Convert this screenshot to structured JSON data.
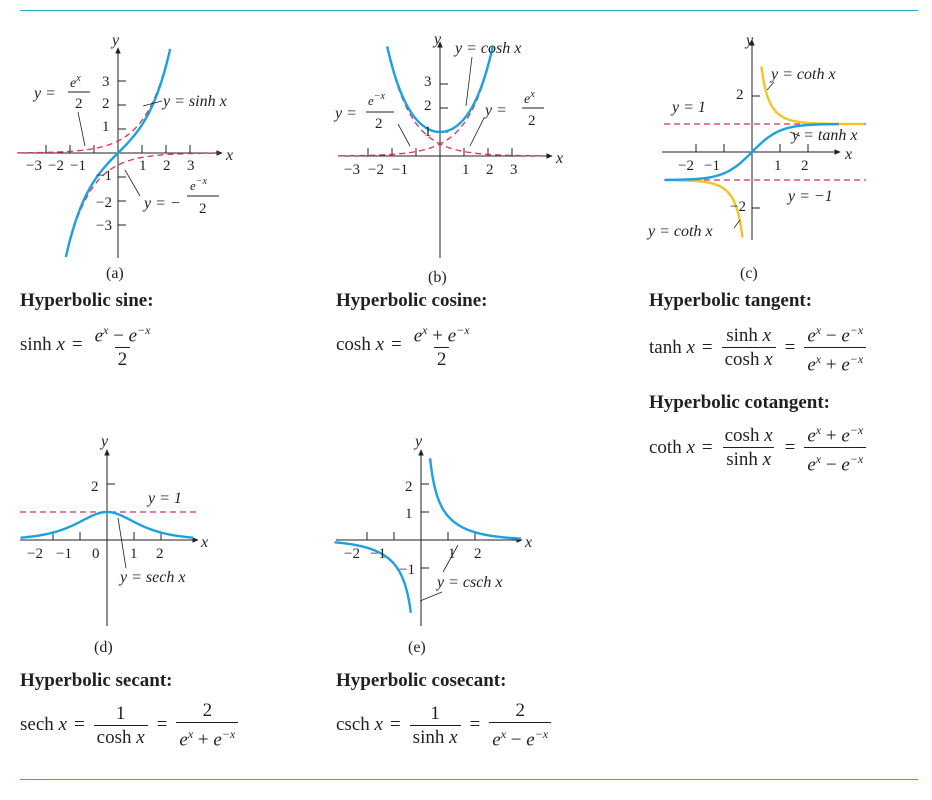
{
  "colors": {
    "rule": "#29a8d8",
    "curve_blue": "#1ba1e2",
    "curve_yellow": "#f6c325",
    "dashed_red": "#d8315b"
  },
  "panels": {
    "a": {
      "caption": "(a)",
      "y_axis": "y",
      "x_axis": "x",
      "x_ticks": [
        "−3",
        "−2",
        "−1",
        "1",
        "2",
        "3"
      ],
      "y_ticks": [
        "3",
        "2",
        "1",
        "−1",
        "−2",
        "−3"
      ],
      "label_sinh": "y = sinh x",
      "label_exp_pos": {
        "prefix": "y =",
        "num": "e^x",
        "den": "2"
      },
      "label_exp_neg": {
        "prefix": "y = −",
        "num": "e^−x",
        "den": "2"
      }
    },
    "b": {
      "caption": "(b)",
      "y_axis": "y",
      "x_axis": "x",
      "x_ticks": [
        "−3",
        "−2",
        "−1",
        "1",
        "2",
        "3"
      ],
      "y_ticks": [
        "3",
        "2",
        "1"
      ],
      "label_cosh": "y = cosh x",
      "label_exp_neg": {
        "prefix": "y =",
        "num": "e^−x",
        "den": "2"
      },
      "label_exp_pos": {
        "prefix": "y =",
        "num": "e^x",
        "den": "2"
      }
    },
    "c": {
      "caption": "(c)",
      "y_axis": "y",
      "x_axis": "x",
      "x_ticks": [
        "−2",
        "−1",
        "1",
        "2"
      ],
      "y_ticks": [
        "2",
        "−2"
      ],
      "label_coth_top": "y = coth x",
      "label_coth_bottom": "y = coth x",
      "label_tanh": "y = tanh x",
      "label_y1": "y = 1",
      "label_ym1": "y = −1"
    },
    "d": {
      "caption": "(d)",
      "y_axis": "y",
      "x_axis": "x",
      "x_ticks": [
        "−2",
        "−1",
        "0",
        "1",
        "2"
      ],
      "y_ticks": [
        "2"
      ],
      "label_y1": "y = 1",
      "label_sech": "y = sech x"
    },
    "e": {
      "caption": "(e)",
      "y_axis": "y",
      "x_axis": "x",
      "x_ticks": [
        "−2",
        "−1",
        "1",
        "2"
      ],
      "y_ticks": [
        "2",
        "1",
        "−1"
      ],
      "label_csch": "y = csch x"
    }
  },
  "definitions": {
    "sinh": {
      "heading": "Hyperbolic sine:",
      "lhs": "sinh x",
      "eq": "=",
      "num": "e^x − e^−x",
      "den": "2"
    },
    "cosh": {
      "heading": "Hyperbolic cosine:",
      "lhs": "cosh x",
      "eq": "=",
      "num": "e^x + e^−x",
      "den": "2"
    },
    "tanh": {
      "heading": "Hyperbolic tangent:",
      "lhs": "tanh x",
      "eq": "=",
      "num1": "sinh x",
      "den1": "cosh x",
      "num2": "e^x − e^−x",
      "den2": "e^x + e^−x"
    },
    "coth": {
      "heading": "Hyperbolic cotangent:",
      "lhs": "coth x",
      "eq": "=",
      "num1": "cosh x",
      "den1": "sinh x",
      "num2": "e^x + e^−x",
      "den2": "e^x − e^−x"
    },
    "sech": {
      "heading": "Hyperbolic secant:",
      "lhs": "sech x",
      "eq": "=",
      "num1": "1",
      "den1": "cosh x",
      "num2": "2",
      "den2": "e^x + e^−x"
    },
    "csch": {
      "heading": "Hyperbolic cosecant:",
      "lhs": "csch x",
      "eq": "=",
      "num1": "1",
      "den1": "sinh x",
      "num2": "2",
      "den2": "e^x − e^−x"
    }
  }
}
